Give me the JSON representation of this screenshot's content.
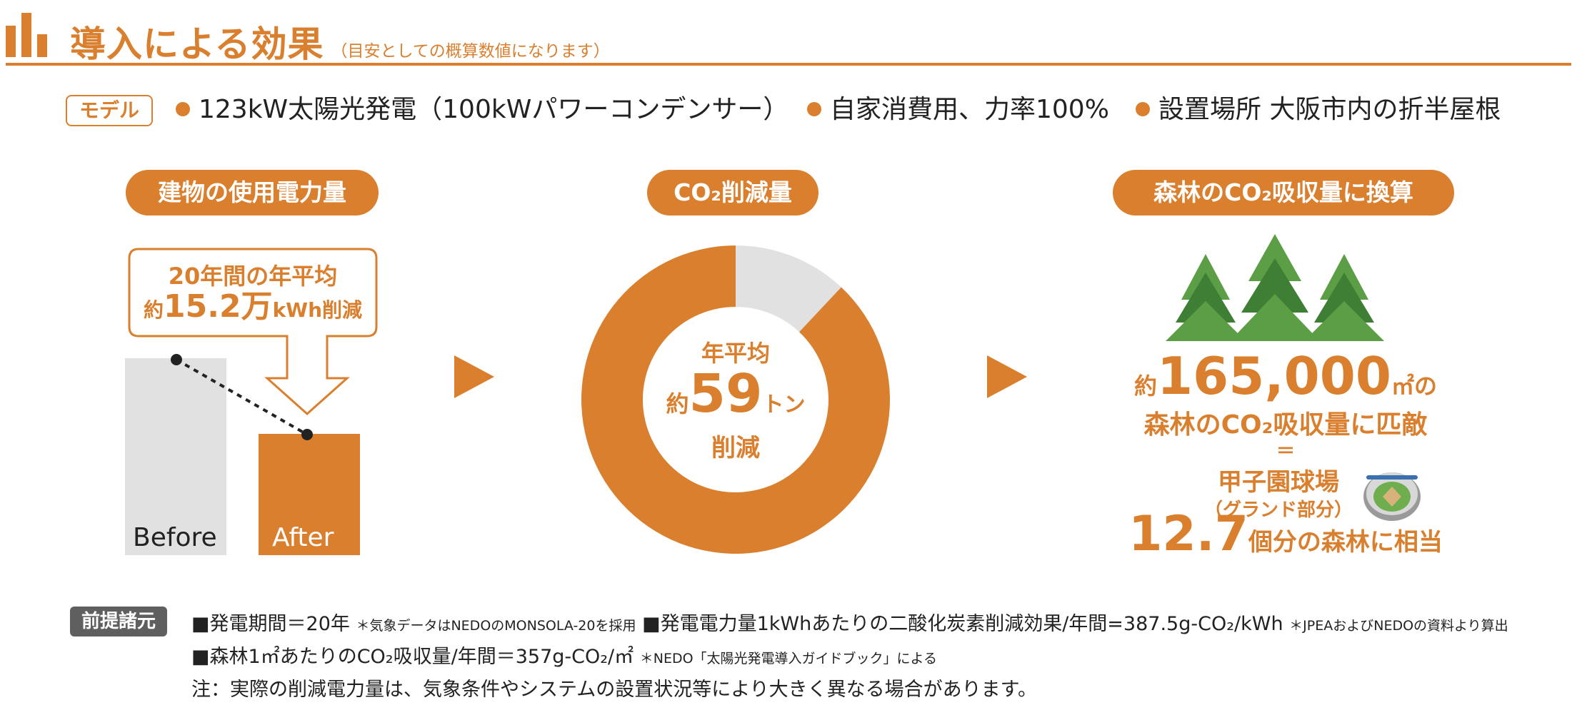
{
  "header": {
    "title": "導入による効果",
    "subtitle": "（目安としての概算数値になります）"
  },
  "model": {
    "badge": "モデル",
    "specs": [
      "123kW太陽光発電（100kWパワーコンデンサー）",
      "自家消費用、力率100%",
      "設置場所 大阪市内の折半屋根"
    ]
  },
  "sections": {
    "usage": "建物の使用電力量",
    "co2": "CO₂削減量",
    "forest": "森林のCO₂吸収量に換算"
  },
  "usage_panel": {
    "callout_line1": "20年間の年平均",
    "callout_prefix": "約",
    "callout_value": "15.2万",
    "callout_unit": "kWh削減",
    "before_label": "Before",
    "after_label": "After"
  },
  "donut": {
    "line1": "年平均",
    "prefix": "約",
    "value": "59",
    "unit": "トン",
    "line3": "削減",
    "reduced_fraction": 0.88,
    "colors": {
      "reduced": "#d97f2e",
      "remaining": "#e1e1e1"
    }
  },
  "forest_panel": {
    "prefix": "約",
    "area_value": "165,000",
    "area_unit": "㎡の",
    "line2": "森林のCO₂吸収量に匹敵",
    "equals": "＝",
    "stadium": "甲子園球場",
    "stadium_sub": "（グランド部分）",
    "count_value": "12.7",
    "count_suffix": "個分の森林に相当"
  },
  "premises": {
    "badge": "前提諸元",
    "line1_main": "■発電期間＝20年",
    "line1_note": "＊気象データはNEDOのMONSOLA-20を採用",
    "line1_main2": "■発電電力量1kWhあたりの二酸化炭素削減効果/年間=387.5g-CO₂/kWh",
    "line1_note2": "＊JPEAおよびNEDOの資料より算出",
    "line2_main": "■森林1㎡あたりのCO₂吸収量/年間＝357g-CO₂/㎡",
    "line2_note": "＊NEDO「太陽光発電導入ガイドブック」による",
    "line3": "注：実際の削減電力量は、気象条件やシステムの設置状況等により大きく異なる場合があります。"
  },
  "colors": {
    "accent": "#d97f2e",
    "gray": "#e1e1e1",
    "tree_light": "#5c9e46",
    "tree_dark": "#3e7f35"
  }
}
